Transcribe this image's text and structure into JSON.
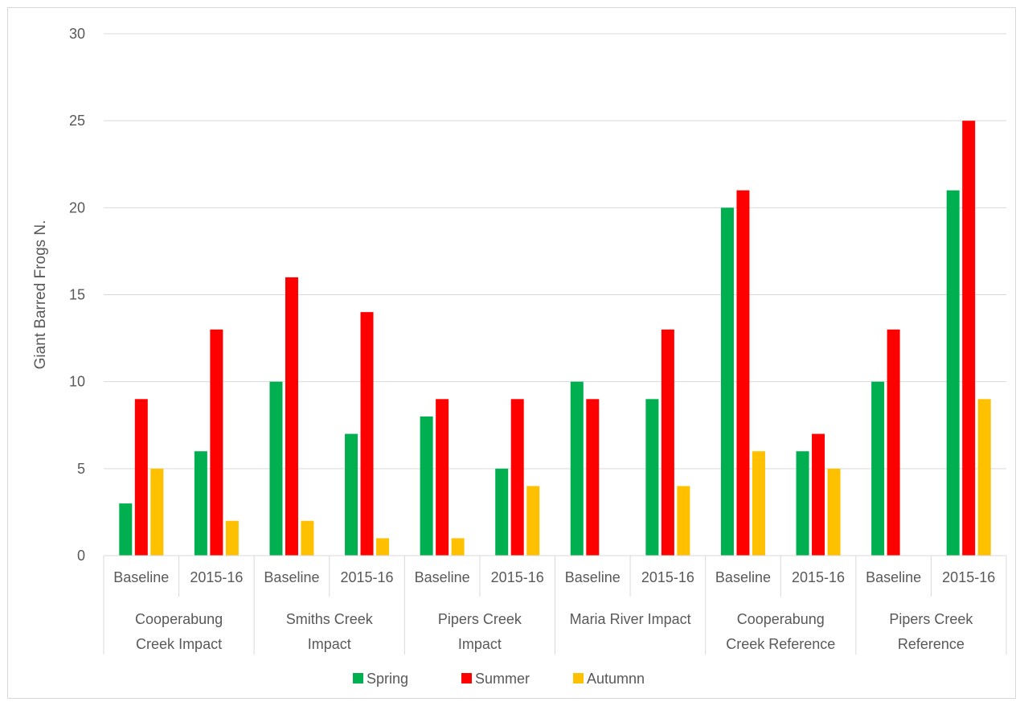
{
  "chart_data": {
    "type": "bar",
    "title": "",
    "xlabel": "",
    "ylabel": "Giant Barred Frogs N.",
    "ylim": [
      0,
      30
    ],
    "yticks": [
      0,
      5,
      10,
      15,
      20,
      25,
      30
    ],
    "grid": true,
    "legend_position": "bottom",
    "groups": [
      {
        "label_lines": [
          "Cooperabung",
          "Creek Impact"
        ],
        "periods": [
          "Baseline",
          "2015-16"
        ]
      },
      {
        "label_lines": [
          "Smiths Creek",
          "Impact"
        ],
        "periods": [
          "Baseline",
          "2015-16"
        ]
      },
      {
        "label_lines": [
          "Pipers Creek",
          "Impact"
        ],
        "periods": [
          "Baseline",
          "2015-16"
        ]
      },
      {
        "label_lines": [
          "Maria River Impact"
        ],
        "periods": [
          "Baseline",
          "2015-16"
        ]
      },
      {
        "label_lines": [
          "Cooperabung",
          "Creek Reference"
        ],
        "periods": [
          "Baseline",
          "2015-16"
        ]
      },
      {
        "label_lines": [
          "Pipers Creek",
          "Reference"
        ],
        "periods": [
          "Baseline",
          "2015-16"
        ]
      }
    ],
    "series": [
      {
        "name": "Spring",
        "color": "#00b050",
        "values": [
          3,
          6,
          10,
          7,
          8,
          5,
          10,
          9,
          20,
          6,
          10,
          21
        ]
      },
      {
        "name": "Summer",
        "color": "#ff0000",
        "values": [
          9,
          13,
          16,
          14,
          9,
          9,
          9,
          13,
          21,
          7,
          13,
          25
        ]
      },
      {
        "name": "Autumnn",
        "color": "#ffc000",
        "values": [
          5,
          2,
          2,
          1,
          1,
          4,
          0,
          4,
          6,
          5,
          0,
          9
        ]
      }
    ]
  }
}
